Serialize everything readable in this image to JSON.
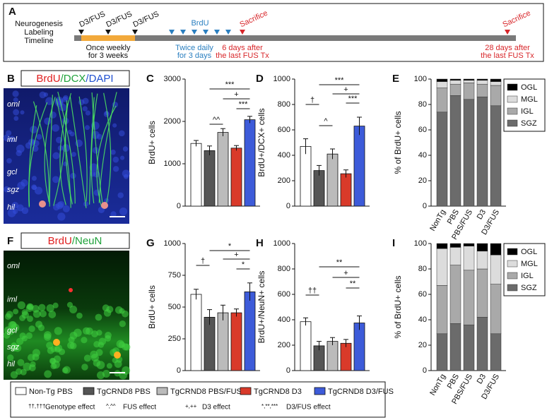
{
  "timeline": {
    "panel": "A",
    "label": [
      "Neurogenesis",
      "Labeling",
      "Timeline"
    ],
    "fus_marks": [
      "D3/FUS",
      "D3/FUS",
      "D3/FUS"
    ],
    "fus_note": [
      "Once weekly",
      "for 3 weeks"
    ],
    "brdu": "BrdU",
    "brdu_note": [
      "Twice daily",
      "for 3 days"
    ],
    "sacrifice_1": "Sacrifice",
    "sacrifice_1_note": [
      "6 days after",
      "the last FUS Tx"
    ],
    "sacrifice_2": "Sacrifice",
    "sacrifice_2_note": [
      "28 days after",
      "the last FUS Tx"
    ]
  },
  "micrographs": [
    {
      "panel": "B",
      "stains": [
        {
          "text": "BrdU",
          "color": "#e02020"
        },
        {
          "text": "/DCX",
          "color": "#1fa23a"
        },
        {
          "text": "/DAPI",
          "color": "#2050d0"
        }
      ],
      "layers": [
        "oml",
        "iml",
        "gcl",
        "sgz",
        "hil"
      ]
    },
    {
      "panel": "F",
      "stains": [
        {
          "text": "BrdU",
          "color": "#e02020"
        },
        {
          "text": "/NeuN",
          "color": "#1fa23a"
        }
      ],
      "layers": [
        "oml",
        "iml",
        "gcl",
        "sgz",
        "hil"
      ]
    }
  ],
  "chart_data": [
    {
      "type": "bar",
      "panel": "C",
      "ylabel": "BrdU+ cells",
      "values": [
        1480,
        1310,
        1740,
        1370,
        2040
      ],
      "errors": [
        70,
        110,
        90,
        60,
        80
      ],
      "ylim": [
        0,
        3000
      ],
      "yticks": [
        0,
        1000,
        2000,
        3000
      ],
      "annotations": [
        "***",
        "+",
        "***",
        "^^"
      ]
    },
    {
      "type": "bar",
      "panel": "D",
      "ylabel": "BrdU+/DCX+ cells",
      "values": [
        470,
        280,
        410,
        255,
        630
      ],
      "errors": [
        60,
        40,
        40,
        30,
        70
      ],
      "ylim": [
        0,
        1000
      ],
      "yticks": [
        0,
        200,
        400,
        600,
        800,
        1000
      ],
      "annotations": [
        "***",
        "+",
        "***",
        "†",
        "^"
      ]
    },
    {
      "type": "stacked_bar",
      "panel": "E",
      "ylabel": "% of BrdU+ cells",
      "categories": [
        "NonTg",
        "PBS",
        "PBS/FUS",
        "D3",
        "D3/FUS"
      ],
      "series": [
        {
          "name": "SGZ",
          "color": "#6b6b6b",
          "values": [
            74,
            87,
            84,
            86,
            79
          ]
        },
        {
          "name": "IGL",
          "color": "#a9a9a9",
          "values": [
            19,
            9,
            13,
            10,
            16
          ]
        },
        {
          "name": "MGL",
          "color": "#dcdcdc",
          "values": [
            5,
            3,
            2,
            3,
            3
          ]
        },
        {
          "name": "OGL",
          "color": "#000000",
          "values": [
            2,
            1,
            1,
            1,
            2
          ]
        }
      ],
      "ylim": [
        0,
        100
      ],
      "yticks": [
        0,
        20,
        40,
        60,
        80,
        100
      ]
    },
    {
      "type": "bar",
      "panel": "G",
      "ylabel": "BrdU+ cells",
      "values": [
        600,
        420,
        455,
        455,
        620
      ],
      "errors": [
        40,
        60,
        60,
        30,
        70
      ],
      "ylim": [
        0,
        1000
      ],
      "yticks": [
        0,
        250,
        500,
        750,
        1000
      ],
      "annotations": [
        "*",
        "+",
        "*",
        "†"
      ]
    },
    {
      "type": "bar",
      "panel": "H",
      "ylabel": "BrdU+/NeuN+ cells",
      "values": [
        385,
        195,
        230,
        215,
        375
      ],
      "errors": [
        30,
        35,
        30,
        30,
        55
      ],
      "ylim": [
        0,
        1000
      ],
      "yticks": [
        0,
        200,
        400,
        600,
        800,
        1000
      ],
      "annotations": [
        "**",
        "+",
        "**",
        "††"
      ]
    },
    {
      "type": "stacked_bar",
      "panel": "I",
      "ylabel": "% of BrdU+ cells",
      "categories": [
        "NonTg",
        "PBS",
        "PBS/FUS",
        "D3",
        "D3/FUS"
      ],
      "series": [
        {
          "name": "SGZ",
          "color": "#6b6b6b",
          "values": [
            29,
            37,
            36,
            42,
            29
          ]
        },
        {
          "name": "IGL",
          "color": "#a9a9a9",
          "values": [
            38,
            46,
            43,
            38,
            39
          ]
        },
        {
          "name": "MGL",
          "color": "#dcdcdc",
          "values": [
            29,
            14,
            19,
            14,
            23
          ]
        },
        {
          "name": "OGL",
          "color": "#000000",
          "values": [
            4,
            3,
            2,
            6,
            9
          ]
        }
      ],
      "ylim": [
        0,
        100
      ],
      "yticks": [
        0,
        20,
        40,
        60,
        80,
        100
      ]
    }
  ],
  "legend": {
    "items": [
      {
        "name": "Non-Tg PBS",
        "color": "#ffffff"
      },
      {
        "name": "TgCRND8 PBS",
        "color": "#555555"
      },
      {
        "name": "TgCRND8 PBS/FUS",
        "color": "#bbbbbb"
      },
      {
        "name": "TgCRND8 D3",
        "color": "#d93a2a"
      },
      {
        "name": "TgCRND8 D3/FUS",
        "color": "#3d5bd9"
      }
    ],
    "notes": [
      {
        "symbol": "††,†††",
        "text": "Genotype effect"
      },
      {
        "symbol": "^,^^",
        "text": "FUS effect"
      },
      {
        "symbol": "+,++",
        "text": "D3 effect"
      },
      {
        "symbol": "*,**,***",
        "text": "D3/FUS effect"
      }
    ]
  }
}
